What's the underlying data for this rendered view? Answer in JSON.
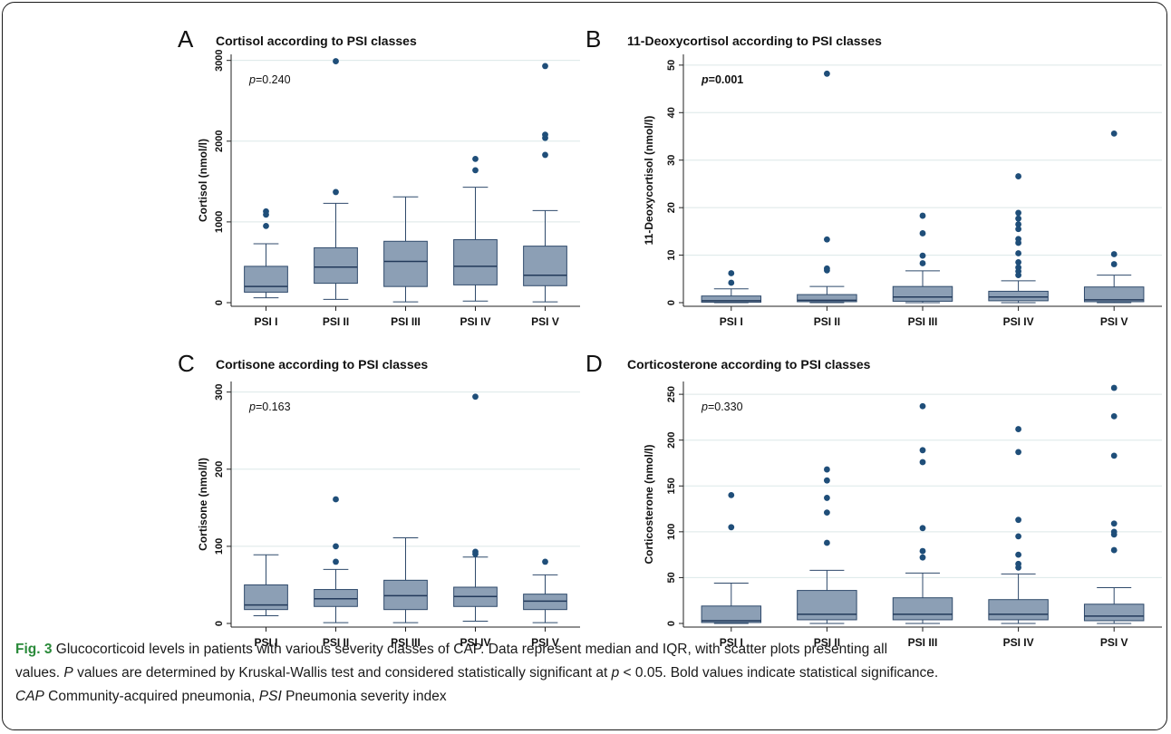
{
  "caption": {
    "figure_label": "Fig. 3",
    "line1": " Glucocorticoid levels in patients with various severity classes of CAP. Data represent median and IQR, with scatter plots presenting all",
    "line2_a": "values. ",
    "line2_P": "P",
    "line2_b": " values are determined by Kruskal-Wallis test and considered statistically significant at ",
    "line2_p": "p",
    "line2_c": " < 0.05. Bold values indicate statistical significance.",
    "line3_CAP": "CAP",
    "line3_a": " Community-acquired pneumonia, ",
    "line3_PSI": "PSI",
    "line3_b": " Pneumonia severity index"
  },
  "colors": {
    "box_fill": "#8c9fb5",
    "box_stroke": "#2f4a6b",
    "median": "#22395a",
    "outlier": "#1f4e79",
    "grid": "#dce8e8",
    "axis": "#222222"
  },
  "chart_data": [
    {
      "letter": "A",
      "type": "box",
      "title": "Cortisol according to PSI classes",
      "ylabel": "Cortisol (nmol/l)",
      "ylim": [
        0,
        3000
      ],
      "yticks": [
        0,
        1000,
        2000,
        3000
      ],
      "p_prefix": "p",
      "p_value": "=0.240",
      "p_bold": false,
      "categories": [
        "PSI I",
        "PSI II",
        "PSI III",
        "PSI IV",
        "PSI V"
      ],
      "boxes": [
        {
          "whisker_low": 60,
          "q1": 130,
          "median": 200,
          "q3": 450,
          "whisker_high": 730,
          "outliers": [
            950,
            1090,
            1130
          ]
        },
        {
          "whisker_low": 40,
          "q1": 240,
          "median": 440,
          "q3": 680,
          "whisker_high": 1230,
          "outliers": [
            1370,
            2990
          ]
        },
        {
          "whisker_low": 10,
          "q1": 200,
          "median": 510,
          "q3": 760,
          "whisker_high": 1310,
          "outliers": []
        },
        {
          "whisker_low": 20,
          "q1": 220,
          "median": 450,
          "q3": 780,
          "whisker_high": 1430,
          "outliers": [
            1640,
            1780
          ]
        },
        {
          "whisker_low": 10,
          "q1": 210,
          "median": 340,
          "q3": 700,
          "whisker_high": 1140,
          "outliers": [
            1830,
            2040,
            2080,
            2930
          ]
        }
      ]
    },
    {
      "letter": "B",
      "type": "box",
      "title": "11-Deoxycortisol according to PSI classes",
      "ylabel": "11-Deoxycortisol (nmol/l)",
      "ylim": [
        0,
        50
      ],
      "yticks": [
        0,
        10,
        20,
        30,
        40,
        50
      ],
      "p_prefix": "p",
      "p_value": "=0.001",
      "p_bold": true,
      "categories": [
        "PSI I",
        "PSI II",
        "PSI III",
        "PSI IV",
        "PSI V"
      ],
      "boxes": [
        {
          "whisker_low": 0,
          "q1": 0.1,
          "median": 0.4,
          "q3": 1.4,
          "whisker_high": 2.9,
          "outliers": [
            4.2,
            6.2
          ]
        },
        {
          "whisker_low": 0,
          "q1": 0.2,
          "median": 0.5,
          "q3": 1.7,
          "whisker_high": 3.4,
          "outliers": [
            6.8,
            7.2,
            13.3,
            48.2
          ]
        },
        {
          "whisker_low": 0,
          "q1": 0.3,
          "median": 1.2,
          "q3": 3.4,
          "whisker_high": 6.7,
          "outliers": [
            8.3,
            9.9,
            14.6,
            18.3
          ]
        },
        {
          "whisker_low": 0,
          "q1": 0.4,
          "median": 1.2,
          "q3": 2.4,
          "whisker_high": 4.6,
          "outliers": [
            5.8,
            6.6,
            7.4,
            8.5,
            10.4,
            12.6,
            13.4,
            15.5,
            16.5,
            17.7,
            18.9,
            26.6
          ]
        },
        {
          "whisker_low": 0,
          "q1": 0.2,
          "median": 0.6,
          "q3": 3.3,
          "whisker_high": 5.8,
          "outliers": [
            8.1,
            10.2,
            35.6
          ]
        }
      ]
    },
    {
      "letter": "C",
      "type": "box",
      "title": "Cortisone according to PSI classes",
      "ylabel": "Cortisone (nmol/l)",
      "ylim": [
        0,
        300
      ],
      "yticks": [
        0,
        100,
        200,
        300
      ],
      "p_prefix": "p",
      "p_value": "=0.163",
      "p_bold": false,
      "categories": [
        "PSI I",
        "PSI II",
        "PSI III",
        "PSI IV",
        "PSI V"
      ],
      "boxes": [
        {
          "whisker_low": 10,
          "q1": 18,
          "median": 24,
          "q3": 50,
          "whisker_high": 89,
          "outliers": []
        },
        {
          "whisker_low": 1,
          "q1": 22,
          "median": 32,
          "q3": 44,
          "whisker_high": 70,
          "outliers": [
            80,
            100,
            161
          ]
        },
        {
          "whisker_low": 1,
          "q1": 18,
          "median": 36,
          "q3": 56,
          "whisker_high": 111,
          "outliers": []
        },
        {
          "whisker_low": 3,
          "q1": 22,
          "median": 35,
          "q3": 47,
          "whisker_high": 86,
          "outliers": [
            90,
            93,
            294
          ]
        },
        {
          "whisker_low": 1,
          "q1": 18,
          "median": 29,
          "q3": 38,
          "whisker_high": 63,
          "outliers": [
            80
          ]
        }
      ]
    },
    {
      "letter": "D",
      "type": "box",
      "title": "Corticosterone according to PSI classes",
      "ylabel": "Corticosterone (nmol/l)",
      "ylim": [
        0,
        250
      ],
      "yticks": [
        0,
        50,
        100,
        150,
        200,
        250
      ],
      "p_prefix": "p",
      "p_value": "=0.330",
      "p_bold": false,
      "categories": [
        "PSI I",
        "PSI II",
        "PSI III",
        "PSI IV",
        "PSI V"
      ],
      "boxes": [
        {
          "whisker_low": 0,
          "q1": 1,
          "median": 3,
          "q3": 19,
          "whisker_high": 44,
          "outliers": [
            105,
            140
          ]
        },
        {
          "whisker_low": 0,
          "q1": 4,
          "median": 10,
          "q3": 36,
          "whisker_high": 58,
          "outliers": [
            88,
            121,
            137,
            156,
            168
          ]
        },
        {
          "whisker_low": 0,
          "q1": 4,
          "median": 10,
          "q3": 28,
          "whisker_high": 55,
          "outliers": [
            72,
            79,
            104,
            176,
            189,
            237
          ]
        },
        {
          "whisker_low": 0,
          "q1": 4,
          "median": 10,
          "q3": 26,
          "whisker_high": 54,
          "outliers": [
            61,
            65,
            75,
            95,
            113,
            187,
            212
          ]
        },
        {
          "whisker_low": 0,
          "q1": 3,
          "median": 8,
          "q3": 21,
          "whisker_high": 39,
          "outliers": [
            80,
            97,
            100,
            109,
            183,
            226,
            257
          ]
        }
      ]
    }
  ]
}
